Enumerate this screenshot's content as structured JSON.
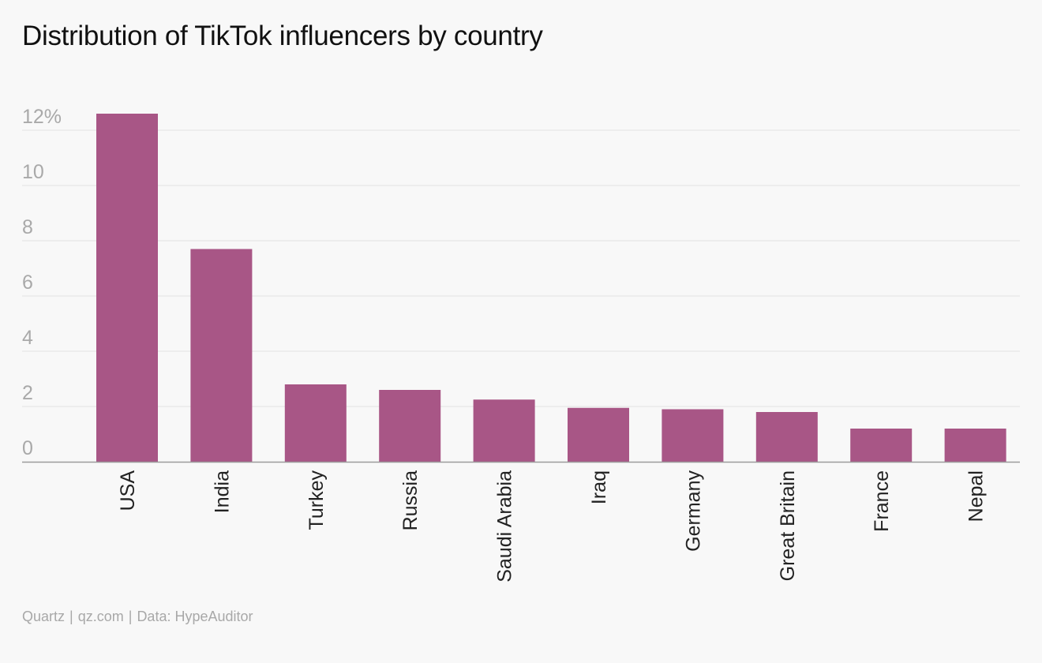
{
  "title": "Distribution of TikTok influencers by country",
  "footer": {
    "brand": "Quartz",
    "site": "qz.com",
    "source": "Data: HypeAuditor",
    "separator": "|"
  },
  "colors": {
    "bar": "#a85686",
    "grid": "#e2e2e2",
    "axis": "#9b9b9b",
    "background": "#f8f8f8"
  },
  "chart_data": {
    "type": "bar",
    "title": "Distribution of TikTok influencers by country",
    "xlabel": "",
    "ylabel": "",
    "categories": [
      "USA",
      "India",
      "Turkey",
      "Russia",
      "Saudi Arabia",
      "Iraq",
      "Germany",
      "Great Britain",
      "France",
      "Nepal"
    ],
    "values": [
      12.6,
      7.7,
      2.8,
      2.6,
      2.25,
      1.95,
      1.9,
      1.8,
      1.2,
      1.2
    ],
    "ylim": [
      0,
      12
    ],
    "yticks": [
      0,
      2,
      4,
      6,
      8,
      10,
      12
    ],
    "ytick_labels": [
      "0",
      "2",
      "4",
      "6",
      "8",
      "10",
      "12%"
    ],
    "grid": true,
    "legend": "none"
  }
}
